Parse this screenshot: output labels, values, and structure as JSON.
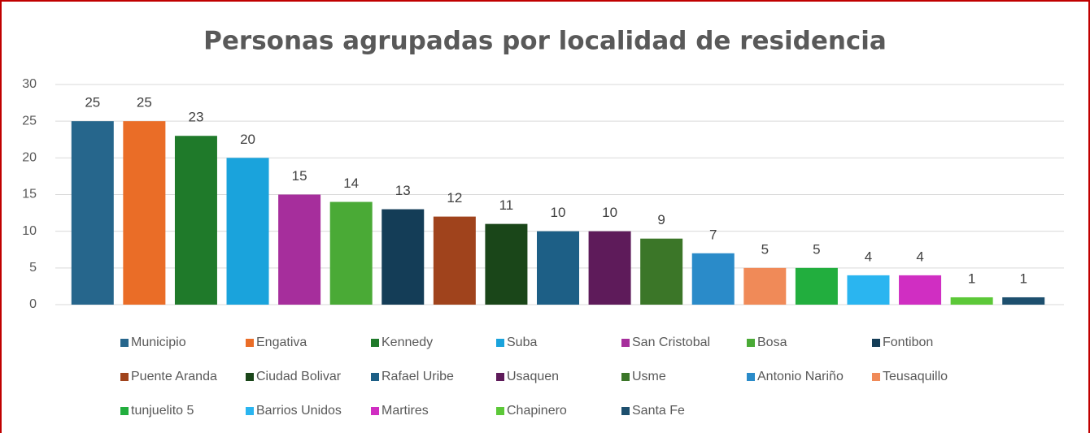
{
  "chart_data": {
    "type": "bar",
    "title": "Personas agrupadas por localidad de residencia",
    "ylim": [
      0,
      30
    ],
    "yticks": [
      0,
      5,
      10,
      15,
      20,
      25,
      30
    ],
    "grid": true,
    "legend": "bottom",
    "series": [
      {
        "name": "Municipio",
        "color": "#26668c",
        "values": [
          25
        ]
      },
      {
        "name": "Engativa",
        "color": "#ea6d27",
        "values": [
          25
        ]
      },
      {
        "name": "Kennedy",
        "color": "#1f7a2a",
        "values": [
          23
        ]
      },
      {
        "name": "Suba",
        "color": "#1aa3dc",
        "values": [
          20
        ]
      },
      {
        "name": "San Cristobal",
        "color": "#a62e9c",
        "values": [
          15
        ]
      },
      {
        "name": "Bosa",
        "color": "#4aaa36",
        "values": [
          14
        ]
      },
      {
        "name": "Fontibon",
        "color": "#143d57",
        "values": [
          13
        ]
      },
      {
        "name": "Puente Aranda",
        "color": "#a0431c",
        "values": [
          12
        ]
      },
      {
        "name": "Ciudad Bolivar",
        "color": "#1a4619",
        "values": [
          11
        ]
      },
      {
        "name": "Rafael Uribe",
        "color": "#1d5f86",
        "values": [
          10
        ]
      },
      {
        "name": "Usaquen",
        "color": "#5e1b5a",
        "values": [
          10
        ]
      },
      {
        "name": "Usme",
        "color": "#3b7628",
        "values": [
          9
        ]
      },
      {
        "name": "Antonio Nariño",
        "color": "#2a8bc9",
        "values": [
          7
        ]
      },
      {
        "name": "Teusaquillo",
        "color": "#f08a58",
        "values": [
          5
        ]
      },
      {
        "name": "tunjuelito 5",
        "color": "#22ae3e",
        "values": [
          5
        ]
      },
      {
        "name": "Barrios Unidos",
        "color": "#2ab5f0",
        "values": [
          4
        ]
      },
      {
        "name": "Martires",
        "color": "#d02ec2",
        "values": [
          4
        ]
      },
      {
        "name": "Chapinero",
        "color": "#5cc838",
        "values": [
          1
        ]
      },
      {
        "name": "Santa Fe",
        "color": "#1d4f6e",
        "values": [
          1
        ]
      }
    ]
  }
}
